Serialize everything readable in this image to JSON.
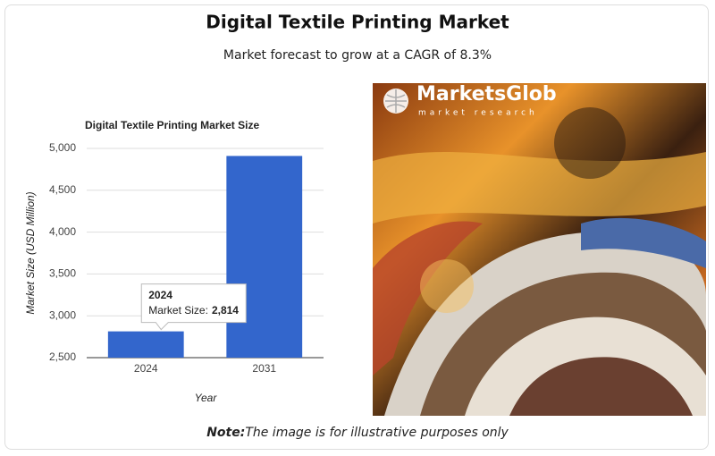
{
  "header": {
    "title": "Digital Textile Printing Market",
    "subtitle": "Market forecast to grow at a CAGR of 8.3%"
  },
  "chart_data": {
    "type": "bar",
    "title": "Digital Textile Printing Market Size",
    "x_label": "Year",
    "y_label": "Market Size (USD Million)",
    "categories": [
      "2024",
      "2031"
    ],
    "values": [
      2814,
      4910
    ],
    "value_labels": [
      "2,814",
      null
    ],
    "tooltip_label": "Market Size:",
    "color": "#3366cc",
    "ylim": [
      2500,
      5000
    ],
    "yticks": [
      {
        "value": 2500,
        "label": "2,500"
      },
      {
        "value": 3000,
        "label": "3,000"
      },
      {
        "value": 3500,
        "label": "3,500"
      },
      {
        "value": 4000,
        "label": "4,000"
      },
      {
        "value": 4500,
        "label": "4,500"
      },
      {
        "value": 5000,
        "label": "5,000"
      }
    ],
    "grid": true
  },
  "image": {
    "brand": "MarketsGlob",
    "tagline": "market research"
  },
  "note": {
    "label": "Note:",
    "text": "The image is for illustrative purposes only"
  }
}
